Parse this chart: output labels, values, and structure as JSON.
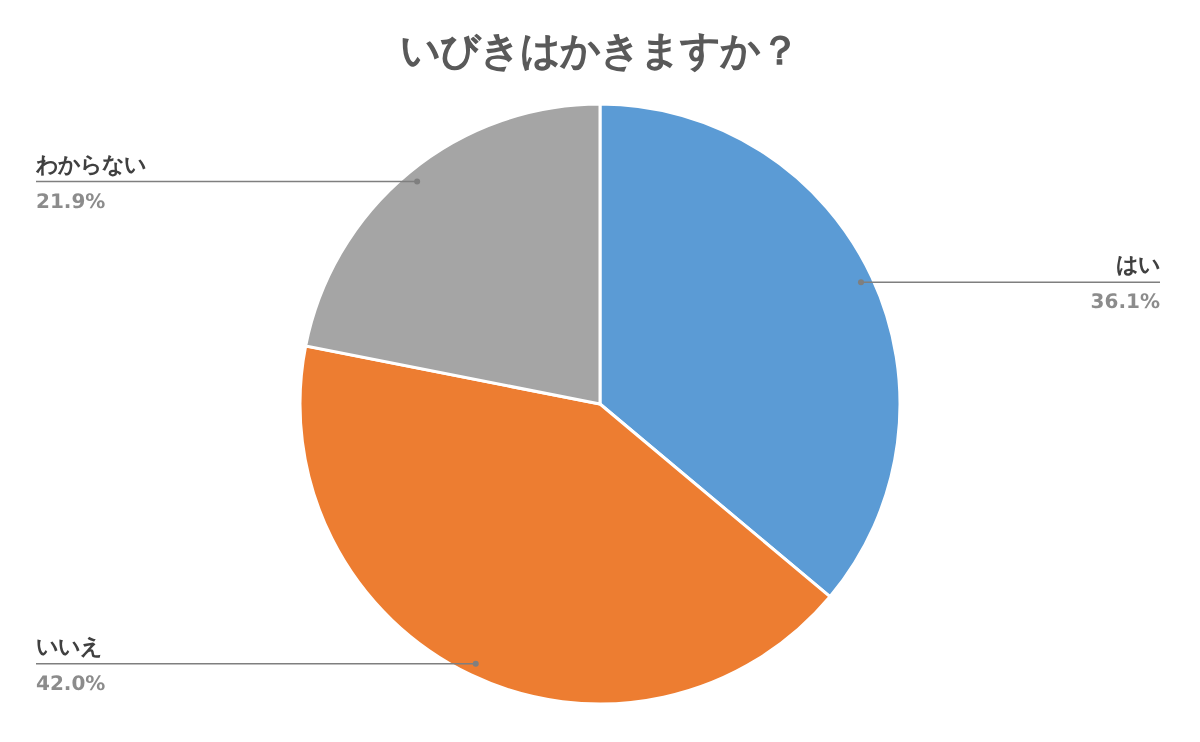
{
  "chart_data": {
    "type": "pie",
    "title": "いびきはかきますか？",
    "categories": [
      "はい",
      "いいえ",
      "わからない"
    ],
    "values": [
      36.1,
      42.0,
      21.9
    ],
    "value_labels": [
      "36.1%",
      "42.0%",
      "21.9%"
    ],
    "colors": [
      "#5b9bd5",
      "#ed7d31",
      "#a5a5a5"
    ]
  }
}
